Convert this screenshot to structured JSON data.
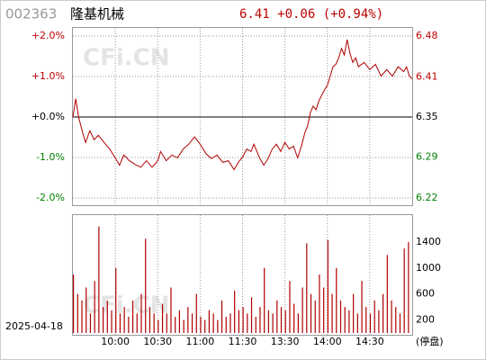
{
  "header": {
    "code": "002363",
    "name": "隆基机械",
    "quote": "6.41 +0.06 (+0.94%)"
  },
  "watermark": "CFi.CN",
  "footer": {
    "date": "2025-04-18",
    "status": "(停盘)"
  },
  "chart_data": [
    {
      "type": "line",
      "color": "#b00000",
      "xlim": [
        0,
        240
      ],
      "ylim": [
        -2,
        2
      ],
      "yticks": [
        {
          "value": 2,
          "label": "+2.0%"
        },
        {
          "value": 1,
          "label": "+1.0%"
        },
        {
          "value": 0,
          "label": "+0.0%"
        },
        {
          "value": -1,
          "label": "-1.0%"
        },
        {
          "value": -2,
          "label": "-2.0%"
        }
      ],
      "y2lim": [
        6.223,
        6.477
      ],
      "y2ticks": [
        {
          "value": 6.477,
          "label": "6.48"
        },
        {
          "value": 6.413,
          "label": "6.41"
        },
        {
          "value": 6.35,
          "label": "6.35"
        },
        {
          "value": 6.287,
          "label": "6.29"
        },
        {
          "value": 6.223,
          "label": "6.22"
        }
      ],
      "x": [
        0,
        2,
        4,
        7,
        9,
        12,
        15,
        18,
        22,
        26,
        30,
        33,
        36,
        40,
        44,
        48,
        52,
        56,
        60,
        62,
        66,
        70,
        74,
        78,
        82,
        86,
        90,
        94,
        98,
        102,
        106,
        110,
        114,
        117,
        120,
        123,
        126,
        128,
        132,
        135,
        138,
        141,
        144,
        147,
        150,
        153,
        156,
        159,
        162,
        164,
        166,
        168,
        170,
        172,
        174,
        176,
        178,
        180,
        182,
        184,
        186,
        188,
        190,
        192,
        194,
        196,
        198,
        200,
        202,
        206,
        210,
        214,
        218,
        222,
        226,
        230,
        234,
        236,
        238,
        240
      ],
      "values": [
        0,
        0.45,
        0,
        -0.4,
        -0.63,
        -0.34,
        -0.56,
        -0.45,
        -0.63,
        -0.79,
        -1.01,
        -1.19,
        -0.94,
        -1.08,
        -1.17,
        -1.24,
        -1.08,
        -1.24,
        -1.08,
        -0.85,
        -1.08,
        -0.94,
        -1.01,
        -0.79,
        -0.67,
        -0.49,
        -0.67,
        -0.9,
        -1.03,
        -0.94,
        -1.12,
        -1.08,
        -1.3,
        -1.12,
        -0.99,
        -0.79,
        -0.85,
        -0.67,
        -1.01,
        -1.19,
        -1.03,
        -0.79,
        -0.67,
        -0.85,
        -0.63,
        -0.79,
        -0.72,
        -1.01,
        -0.67,
        -0.4,
        -0.22,
        0.11,
        0.27,
        0.18,
        0.4,
        0.54,
        0.67,
        0.79,
        1.01,
        1.24,
        1.3,
        1.46,
        1.69,
        1.53,
        1.91,
        1.57,
        1.35,
        1.46,
        1.24,
        1.35,
        1.17,
        1.3,
        1.01,
        1.17,
        1.01,
        1.24,
        1.12,
        1.24,
        1.01,
        0.94
      ]
    },
    {
      "type": "bar",
      "color": "#b00000",
      "xlim": [
        0,
        240
      ],
      "ylim": [
        0,
        1800
      ],
      "yticks": [
        200,
        600,
        1000,
        1400
      ],
      "xticks": [
        {
          "value": 30,
          "label": "10:00"
        },
        {
          "value": 60,
          "label": "10:30"
        },
        {
          "value": 90,
          "label": "11:00"
        },
        {
          "value": 120,
          "label": "11:30"
        },
        {
          "value": 150,
          "label": "13:30"
        },
        {
          "value": 180,
          "label": "14:00"
        },
        {
          "value": 210,
          "label": "14:30"
        }
      ],
      "x": [
        0,
        3,
        6,
        9,
        12,
        15,
        18,
        21,
        24,
        27,
        30,
        33,
        36,
        39,
        42,
        45,
        48,
        51,
        54,
        57,
        60,
        63,
        66,
        69,
        72,
        75,
        78,
        81,
        84,
        87,
        90,
        93,
        96,
        99,
        102,
        105,
        108,
        111,
        114,
        117,
        120,
        123,
        126,
        129,
        132,
        135,
        138,
        141,
        144,
        147,
        150,
        153,
        156,
        159,
        162,
        165,
        168,
        171,
        174,
        177,
        180,
        183,
        186,
        189,
        192,
        195,
        198,
        201,
        204,
        207,
        210,
        213,
        216,
        219,
        222,
        225,
        228,
        231,
        234,
        237
      ],
      "values": [
        900,
        600,
        500,
        700,
        300,
        800,
        1640,
        400,
        500,
        350,
        1000,
        300,
        400,
        250,
        500,
        300,
        600,
        1450,
        400,
        300,
        200,
        450,
        300,
        700,
        250,
        350,
        200,
        400,
        300,
        600,
        250,
        200,
        350,
        300,
        200,
        500,
        250,
        300,
        650,
        350,
        400,
        300,
        550,
        250,
        400,
        1000,
        350,
        300,
        500,
        400,
        350,
        800,
        450,
        300,
        700,
        1380,
        600,
        500,
        900,
        700,
        1430,
        600,
        1000,
        500,
        400,
        350,
        600,
        300,
        800,
        400,
        300,
        500,
        350,
        600,
        1200,
        500,
        400,
        300,
        1300,
        1400
      ]
    }
  ]
}
